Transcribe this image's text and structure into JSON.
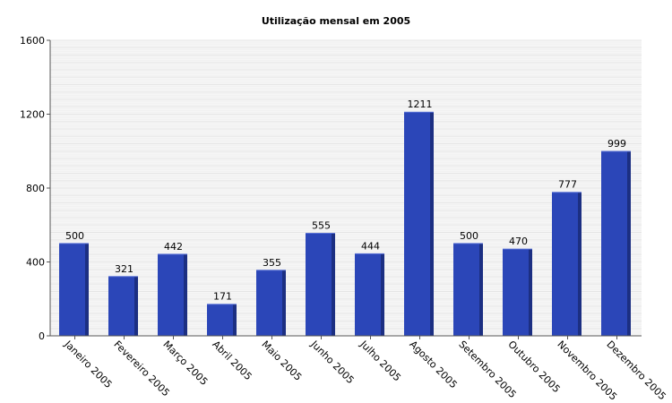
{
  "chart_data": {
    "type": "bar",
    "title": "Utilização mensal em 2005",
    "xlabel": "",
    "ylabel": "",
    "categories": [
      "Janeiro 2005",
      "Fevereiro 2005",
      "Março 2005",
      "Abril 2005",
      "Maio 2005",
      "Junho 2005",
      "Julho 2005",
      "Agosto 2005",
      "Setembro 2005",
      "Outubro 2005",
      "Novembro 2005",
      "Dezembro 2005"
    ],
    "values": [
      500,
      321,
      442,
      171,
      355,
      555,
      444,
      1211,
      500,
      470,
      777,
      999
    ],
    "ylim": [
      0,
      1600
    ],
    "yticks": [
      0,
      400,
      800,
      1200,
      1600
    ],
    "grid": true,
    "colors": {
      "bar": "#2b46b8",
      "bar_shade": "#1c2f82",
      "grid": "#dedede",
      "axis": "#555555"
    }
  }
}
